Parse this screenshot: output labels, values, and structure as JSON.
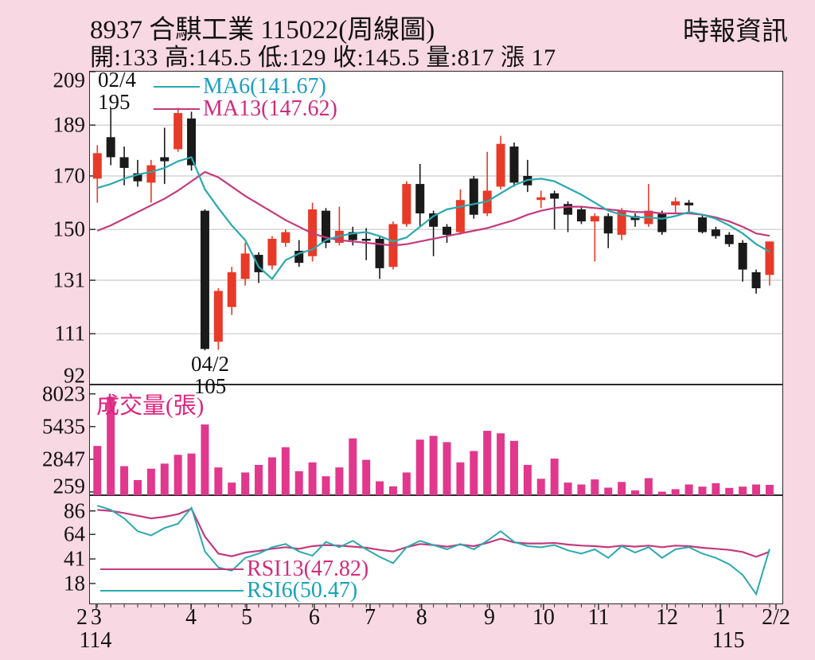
{
  "header": {
    "title": "8937 合騏工業 115022(周線圖)",
    "source": "時報資訊",
    "quote_line": "開:133 高:145.5 低:129 收:145.5 量:817 漲 17"
  },
  "colors": {
    "background": "#f8d8e2",
    "panel_bg": "#ffffff",
    "panel_border": "#2b2b2b",
    "grid": "#c9c9c9",
    "text": "#111111",
    "up_candle": "#e83a28",
    "down_candle": "#1a1a1a",
    "volume_bar": "#e1388e",
    "volume_title": "#e0247e",
    "ma6_line": "#2aa9b0",
    "ma13_line": "#c43a7c",
    "ma6_text": "#1b9fc4",
    "ma13_text": "#d02c7c",
    "rsi6_line": "#2aa9b0",
    "rsi13_line": "#c43a7c",
    "rsi6_text": "#17a3b8",
    "rsi13_text": "#d22c7c"
  },
  "chart_data": [
    {
      "type": "candlestick",
      "panel": "price",
      "timeframe": "weekly",
      "ylim": [
        92,
        209
      ],
      "yticks": [
        209,
        189,
        170,
        150,
        131,
        111,
        92
      ],
      "legend": [
        {
          "series": "MA6",
          "label": "MA6(141.67)",
          "value": 141.67
        },
        {
          "series": "MA13",
          "label": "MA13(147.62)",
          "value": 147.62
        }
      ],
      "high_annotation": {
        "date": "02/4",
        "price": "195"
      },
      "low_annotation": {
        "date": "04/2",
        "price": "105"
      },
      "candles_ohlc": [
        [
          169,
          181.5,
          160,
          178.5
        ],
        [
          184.5,
          195,
          174,
          177
        ],
        [
          177,
          181,
          166.5,
          173
        ],
        [
          171,
          176,
          166,
          168
        ],
        [
          167.5,
          176,
          160,
          174
        ],
        [
          177,
          188,
          167,
          175.5
        ],
        [
          180,
          195.5,
          179,
          193.5
        ],
        [
          191.5,
          194,
          172,
          174
        ],
        [
          157,
          157.5,
          104.8,
          105.3
        ],
        [
          108,
          128,
          105,
          127
        ],
        [
          121,
          136,
          118,
          134
        ],
        [
          131.5,
          145,
          129,
          141
        ],
        [
          140.5,
          141.5,
          130,
          134
        ],
        [
          136.5,
          147.5,
          135,
          146.5
        ],
        [
          145,
          150,
          143.5,
          149
        ],
        [
          142,
          146,
          136,
          137.5
        ],
        [
          140,
          160,
          138,
          157.5
        ],
        [
          157,
          158,
          143,
          145
        ],
        [
          145,
          158.5,
          144,
          149.5
        ],
        [
          149,
          151,
          144,
          146
        ],
        [
          146.5,
          150.5,
          138.5,
          146
        ],
        [
          146.5,
          147.5,
          131.5,
          135.5
        ],
        [
          136,
          153,
          135,
          152
        ],
        [
          152,
          168,
          151,
          167
        ],
        [
          167,
          174.5,
          151,
          156
        ],
        [
          156,
          157,
          140,
          151
        ],
        [
          151,
          152,
          145,
          148
        ],
        [
          149,
          165,
          148,
          161
        ],
        [
          169,
          170,
          154,
          155.5
        ],
        [
          156,
          179,
          155,
          164.5
        ],
        [
          166,
          185,
          165,
          182
        ],
        [
          181,
          182.5,
          166,
          167.5
        ],
        [
          170,
          176,
          164,
          166.5
        ],
        [
          161,
          164.5,
          158,
          162
        ],
        [
          163.5,
          164.5,
          150,
          161.5
        ],
        [
          159.5,
          160.5,
          149,
          155.5
        ],
        [
          157.5,
          158.5,
          152,
          153
        ],
        [
          153,
          156,
          138,
          155
        ],
        [
          155,
          156,
          143,
          148.5
        ],
        [
          148,
          158,
          146,
          157
        ],
        [
          155,
          156,
          151,
          153.5
        ],
        [
          152,
          167,
          151,
          157
        ],
        [
          156,
          157,
          148,
          149
        ],
        [
          159,
          162,
          156,
          160.5
        ],
        [
          160,
          161,
          156,
          159
        ],
        [
          154.5,
          155.5,
          148.5,
          149
        ],
        [
          150,
          151,
          146.5,
          147.5
        ],
        [
          148,
          149,
          143.5,
          144.5
        ],
        [
          145,
          146,
          130.5,
          135
        ],
        [
          134,
          135,
          126,
          128
        ],
        [
          133,
          145.5,
          129,
          145.5
        ]
      ],
      "ma6": [
        165.5,
        167,
        169,
        170.5,
        171.5,
        173,
        175.5,
        177,
        165,
        158,
        151.5,
        146,
        136,
        131.5,
        138.5,
        141,
        142.5,
        146,
        147.5,
        148.5,
        149,
        147.5,
        145.5,
        147,
        151,
        155,
        157.5,
        158.5,
        159.5,
        160.5,
        163.5,
        166.5,
        168.5,
        169,
        168,
        165.5,
        163,
        160,
        157,
        155.5,
        154.5,
        154.5,
        154,
        155,
        156.5,
        155.5,
        154,
        151.5,
        148.5,
        144.5,
        141.67
      ],
      "ma13": [
        149.5,
        151.5,
        154,
        156.5,
        159,
        161.5,
        164.5,
        168,
        171.5,
        169.5,
        166,
        162.5,
        159.5,
        156.5,
        153.5,
        151,
        148.5,
        147,
        146,
        145.5,
        145,
        144.5,
        144,
        144.5,
        145.5,
        146.5,
        147.5,
        148.5,
        149.5,
        150.5,
        152,
        153.5,
        155.5,
        157,
        158,
        158.5,
        158.5,
        158,
        157.5,
        157,
        156.5,
        156.5,
        156,
        156,
        156,
        155.5,
        154.5,
        153,
        151,
        148.5,
        147.62
      ]
    },
    {
      "type": "bar",
      "panel": "volume",
      "title": "成交量(張)",
      "yticks": [
        8023,
        5435,
        2847,
        259
      ],
      "ymax": 8700,
      "values": [
        3900,
        7800,
        2300,
        1200,
        2100,
        2500,
        3200,
        3300,
        5600,
        2200,
        1000,
        1800,
        2400,
        3000,
        3800,
        1900,
        2600,
        1500,
        2200,
        4500,
        2800,
        1100,
        700,
        1800,
        4400,
        4700,
        4200,
        2600,
        3500,
        5100,
        4900,
        4300,
        2400,
        1300,
        2900,
        1000,
        850,
        1250,
        600,
        1050,
        380,
        1350,
        280,
        480,
        850,
        680,
        950,
        580,
        680,
        850,
        820
      ]
    },
    {
      "type": "line",
      "panel": "rsi",
      "ylim": [
        0,
        100
      ],
      "yticks": [
        86,
        64,
        41,
        18
      ],
      "series": [
        {
          "name": "RSI13",
          "label": "RSI13(47.82)",
          "value": 47.82,
          "values": [
            87,
            86,
            84,
            81.5,
            79,
            80.5,
            83,
            88,
            62,
            46,
            43.5,
            47,
            48.5,
            50.5,
            52,
            50.5,
            53,
            54,
            53.5,
            52.5,
            51.5,
            49.5,
            48,
            52,
            55,
            54,
            52.5,
            54.5,
            53,
            56,
            60,
            56.5,
            55.5,
            55.5,
            56,
            54.5,
            53.5,
            53,
            52,
            53.5,
            52.5,
            53.5,
            52,
            53.5,
            53,
            51.5,
            50.5,
            49.5,
            47.5,
            43,
            47.82
          ]
        },
        {
          "name": "RSI6",
          "label": "RSI6(50.47)",
          "value": 50.47,
          "values": [
            91,
            87,
            79,
            67,
            63,
            70,
            74,
            89,
            48,
            33,
            30,
            42,
            46,
            52,
            55,
            48,
            44,
            57,
            52,
            58,
            50,
            43,
            37,
            52,
            58,
            54,
            50,
            55,
            50,
            58,
            67,
            57,
            53,
            52,
            54,
            49,
            46,
            50,
            42,
            53,
            47,
            52,
            42,
            50,
            52,
            46,
            42,
            36,
            26,
            8,
            50.47
          ]
        }
      ]
    }
  ],
  "xaxis": {
    "months": [
      {
        "label": "2",
        "fx": -0.0115
      },
      {
        "label": "3",
        "fx": 0.009
      },
      {
        "label": "4",
        "fx": 0.146
      },
      {
        "label": "5",
        "fx": 0.2264
      },
      {
        "label": "6",
        "fx": 0.324
      },
      {
        "label": "7",
        "fx": 0.4046
      },
      {
        "label": "8",
        "fx": 0.479
      },
      {
        "label": "9",
        "fx": 0.577
      },
      {
        "label": "10",
        "fx": 0.655
      },
      {
        "label": "11",
        "fx": 0.7345
      },
      {
        "label": "12",
        "fx": 0.8333
      },
      {
        "label": "1",
        "fx": 0.9103
      },
      {
        "label": "2/2",
        "fx": 0.9908
      }
    ],
    "years": [
      {
        "label": "114",
        "fx": 0.008
      },
      {
        "label": "115",
        "fx": 0.922
      }
    ]
  }
}
